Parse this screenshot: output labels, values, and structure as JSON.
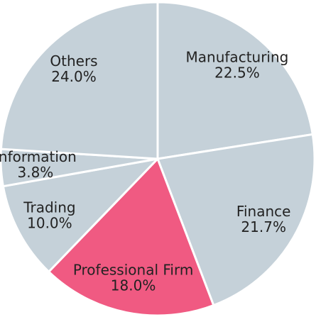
{
  "chart_data": {
    "type": "pie",
    "categories": [
      "Manufacturing",
      "Finance",
      "Professional Firm",
      "Trading",
      "Information",
      "Others"
    ],
    "values": [
      22.5,
      21.7,
      18.0,
      10.0,
      3.8,
      24.0
    ],
    "value_labels": [
      "22.5%",
      "21.7%",
      "18.0%",
      "10.0%",
      "3.8%",
      "24.0%"
    ],
    "colors": [
      "#c5d1d9",
      "#c5d1d9",
      "#f05a82",
      "#c5d1d9",
      "#c5d1d9",
      "#c5d1d9"
    ]
  }
}
